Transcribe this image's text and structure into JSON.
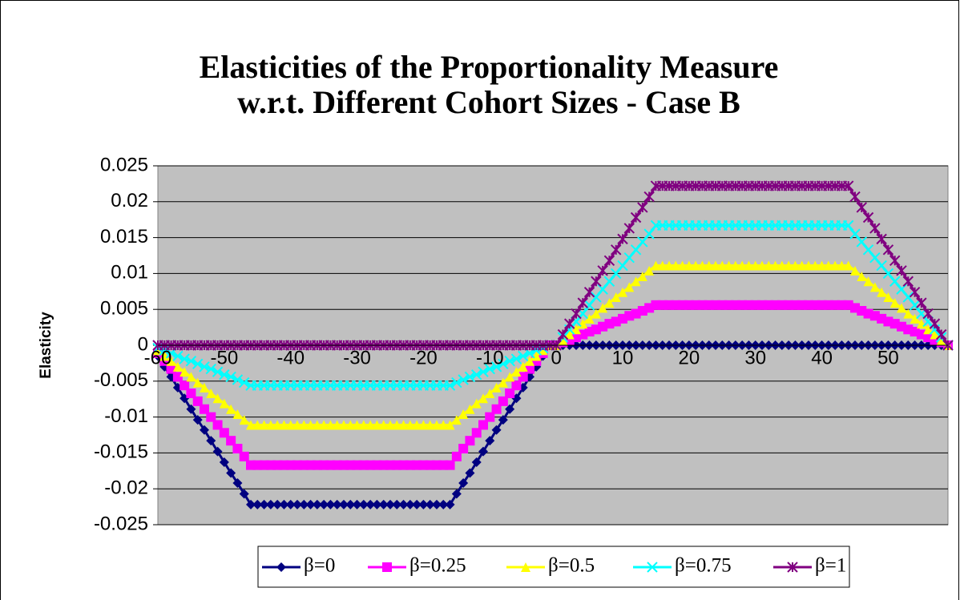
{
  "chart_data": {
    "type": "line",
    "title": [
      "Elasticities of the Proportionality Measure",
      "w.r.t. Different Cohort Sizes - Case B"
    ],
    "y_label": "Elasticity",
    "categories": [
      "-60",
      null,
      null,
      null,
      null,
      null,
      null,
      null,
      null,
      null,
      "-50",
      null,
      null,
      null,
      null,
      null,
      null,
      null,
      null,
      null,
      "-40",
      null,
      null,
      null,
      null,
      null,
      null,
      null,
      null,
      null,
      "-30",
      null,
      null,
      null,
      null,
      null,
      null,
      null,
      null,
      null,
      "-20",
      null,
      null,
      null,
      null,
      null,
      null,
      null,
      null,
      null,
      "-10",
      null,
      null,
      null,
      null,
      null,
      null,
      null,
      null,
      null,
      "0",
      null,
      null,
      null,
      null,
      null,
      null,
      null,
      null,
      null,
      "10",
      null,
      null,
      null,
      null,
      null,
      null,
      null,
      null,
      null,
      "20",
      null,
      null,
      null,
      null,
      null,
      null,
      null,
      null,
      null,
      "30",
      null,
      null,
      null,
      null,
      null,
      null,
      null,
      null,
      null,
      "40",
      null,
      null,
      null,
      null,
      null,
      null,
      null,
      null,
      null,
      "50",
      null,
      null,
      null,
      null,
      null,
      null,
      null,
      null,
      null
    ],
    "ylim": [
      -0.025,
      0.025
    ],
    "yticks": [
      -0.025,
      -0.02,
      -0.015,
      -0.01,
      -0.005,
      0,
      0.005,
      0.01,
      0.015,
      0.02,
      0.025
    ],
    "grid": true,
    "legend": "bottom",
    "series": [
      {
        "name": "β=0",
        "color": "#000080",
        "marker": "diamond",
        "values": [
          -0.0015,
          -0.003,
          -0.0044,
          -0.0059,
          -0.0074,
          -0.0089,
          -0.0104,
          -0.0118,
          -0.0133,
          -0.0148,
          -0.0163,
          -0.0178,
          -0.0192,
          -0.0207,
          -0.0222,
          -0.0222,
          -0.0222,
          -0.0222,
          -0.0222,
          -0.0222,
          -0.0222,
          -0.0222,
          -0.0222,
          -0.0222,
          -0.0222,
          -0.0222,
          -0.0222,
          -0.0222,
          -0.0222,
          -0.0222,
          -0.0222,
          -0.0222,
          -0.0222,
          -0.0222,
          -0.0222,
          -0.0222,
          -0.0222,
          -0.0222,
          -0.0222,
          -0.0222,
          -0.0222,
          -0.0222,
          -0.0222,
          -0.0222,
          -0.0222,
          -0.0207,
          -0.0192,
          -0.0178,
          -0.0163,
          -0.0148,
          -0.0133,
          -0.0118,
          -0.0104,
          -0.0089,
          -0.0074,
          -0.0059,
          -0.0044,
          -0.003,
          -0.0015,
          0,
          0,
          0,
          0,
          0,
          0,
          0,
          0,
          0,
          0,
          0,
          0,
          0,
          0,
          0,
          0,
          0,
          0,
          0,
          0,
          0,
          0,
          0,
          0,
          0,
          0,
          0,
          0,
          0,
          0,
          0,
          0,
          0,
          0,
          0,
          0,
          0,
          0,
          0,
          0,
          0,
          0,
          0,
          0,
          0,
          0,
          0,
          0,
          0,
          0,
          0,
          0,
          0,
          0,
          0,
          0,
          0,
          0,
          0,
          0,
          0
        ]
      },
      {
        "name": "β=0.25",
        "color": "#ff00ff",
        "marker": "square",
        "values": [
          -0.0011,
          -0.0022,
          -0.0033,
          -0.0044,
          -0.0056,
          -0.0067,
          -0.0078,
          -0.0089,
          -0.01,
          -0.0111,
          -0.0122,
          -0.0133,
          -0.0144,
          -0.0155,
          -0.0167,
          -0.0167,
          -0.0167,
          -0.0167,
          -0.0167,
          -0.0167,
          -0.0167,
          -0.0167,
          -0.0167,
          -0.0167,
          -0.0167,
          -0.0167,
          -0.0167,
          -0.0167,
          -0.0167,
          -0.0167,
          -0.0167,
          -0.0167,
          -0.0167,
          -0.0167,
          -0.0167,
          -0.0167,
          -0.0167,
          -0.0167,
          -0.0167,
          -0.0167,
          -0.0167,
          -0.0167,
          -0.0167,
          -0.0167,
          -0.0167,
          -0.0155,
          -0.0144,
          -0.0133,
          -0.0122,
          -0.0111,
          -0.01,
          -0.0089,
          -0.0078,
          -0.0067,
          -0.0056,
          -0.0044,
          -0.0033,
          -0.0022,
          -0.0011,
          0,
          0,
          0.0004,
          0.0007,
          0.0011,
          0.0015,
          0.0019,
          0.0022,
          0.0026,
          0.003,
          0.0033,
          0.0037,
          0.0041,
          0.0044,
          0.0048,
          0.0052,
          0.0056,
          0.0056,
          0.0056,
          0.0056,
          0.0056,
          0.0056,
          0.0056,
          0.0056,
          0.0056,
          0.0056,
          0.0056,
          0.0056,
          0.0056,
          0.0056,
          0.0056,
          0.0056,
          0.0056,
          0.0056,
          0.0056,
          0.0056,
          0.0056,
          0.0056,
          0.0056,
          0.0056,
          0.0056,
          0.0056,
          0.0056,
          0.0056,
          0.0056,
          0.0056,
          0.0052,
          0.0048,
          0.0044,
          0.0041,
          0.0037,
          0.0033,
          0.003,
          0.0026,
          0.0022,
          0.0019,
          0.0015,
          0.0011,
          0.0007,
          0.0004,
          0
        ]
      },
      {
        "name": "β=0.5",
        "color": "#ffff00",
        "marker": "triangle",
        "values": [
          -0.0007,
          -0.0015,
          -0.0022,
          -0.003,
          -0.0037,
          -0.0044,
          -0.0052,
          -0.0059,
          -0.0067,
          -0.0074,
          -0.0081,
          -0.0089,
          -0.0096,
          -0.0104,
          -0.0111,
          -0.0111,
          -0.0111,
          -0.0111,
          -0.0111,
          -0.0111,
          -0.0111,
          -0.0111,
          -0.0111,
          -0.0111,
          -0.0111,
          -0.0111,
          -0.0111,
          -0.0111,
          -0.0111,
          -0.0111,
          -0.0111,
          -0.0111,
          -0.0111,
          -0.0111,
          -0.0111,
          -0.0111,
          -0.0111,
          -0.0111,
          -0.0111,
          -0.0111,
          -0.0111,
          -0.0111,
          -0.0111,
          -0.0111,
          -0.0111,
          -0.0104,
          -0.0096,
          -0.0089,
          -0.0081,
          -0.0074,
          -0.0067,
          -0.0059,
          -0.0052,
          -0.0044,
          -0.0037,
          -0.003,
          -0.0022,
          -0.0015,
          -0.0007,
          0,
          0,
          0.0007,
          0.0015,
          0.0022,
          0.003,
          0.0037,
          0.0044,
          0.0052,
          0.0059,
          0.0067,
          0.0074,
          0.0081,
          0.0089,
          0.0096,
          0.0104,
          0.0111,
          0.0111,
          0.0111,
          0.0111,
          0.0111,
          0.0111,
          0.0111,
          0.0111,
          0.0111,
          0.0111,
          0.0111,
          0.0111,
          0.0111,
          0.0111,
          0.0111,
          0.0111,
          0.0111,
          0.0111,
          0.0111,
          0.0111,
          0.0111,
          0.0111,
          0.0111,
          0.0111,
          0.0111,
          0.0111,
          0.0111,
          0.0111,
          0.0111,
          0.0111,
          0.0104,
          0.0096,
          0.0089,
          0.0081,
          0.0074,
          0.0067,
          0.0059,
          0.0052,
          0.0044,
          0.0037,
          0.003,
          0.0022,
          0.0015,
          0.0007,
          0
        ]
      },
      {
        "name": "β=0.75",
        "color": "#00ffff",
        "marker": "x",
        "values": [
          -0.0004,
          -0.0007,
          -0.0011,
          -0.0015,
          -0.0019,
          -0.0022,
          -0.0026,
          -0.003,
          -0.0033,
          -0.0037,
          -0.0041,
          -0.0044,
          -0.0048,
          -0.0052,
          -0.0056,
          -0.0056,
          -0.0056,
          -0.0056,
          -0.0056,
          -0.0056,
          -0.0056,
          -0.0056,
          -0.0056,
          -0.0056,
          -0.0056,
          -0.0056,
          -0.0056,
          -0.0056,
          -0.0056,
          -0.0056,
          -0.0056,
          -0.0056,
          -0.0056,
          -0.0056,
          -0.0056,
          -0.0056,
          -0.0056,
          -0.0056,
          -0.0056,
          -0.0056,
          -0.0056,
          -0.0056,
          -0.0056,
          -0.0056,
          -0.0056,
          -0.0052,
          -0.0048,
          -0.0044,
          -0.0041,
          -0.0037,
          -0.0033,
          -0.003,
          -0.0026,
          -0.0022,
          -0.0019,
          -0.0015,
          -0.0011,
          -0.0007,
          -0.0004,
          0,
          0,
          0.0011,
          0.0022,
          0.0033,
          0.0044,
          0.0056,
          0.0067,
          0.0078,
          0.0089,
          0.01,
          0.0111,
          0.0122,
          0.0133,
          0.0144,
          0.0155,
          0.0167,
          0.0167,
          0.0167,
          0.0167,
          0.0167,
          0.0167,
          0.0167,
          0.0167,
          0.0167,
          0.0167,
          0.0167,
          0.0167,
          0.0167,
          0.0167,
          0.0167,
          0.0167,
          0.0167,
          0.0167,
          0.0167,
          0.0167,
          0.0167,
          0.0167,
          0.0167,
          0.0167,
          0.0167,
          0.0167,
          0.0167,
          0.0167,
          0.0167,
          0.0167,
          0.0155,
          0.0144,
          0.0133,
          0.0122,
          0.0111,
          0.01,
          0.0089,
          0.0078,
          0.0067,
          0.0056,
          0.0044,
          0.0033,
          0.0022,
          0.0011,
          0
        ]
      },
      {
        "name": "β=1",
        "color": "#800080",
        "marker": "star",
        "values": [
          0,
          0,
          0,
          0,
          0,
          0,
          0,
          0,
          0,
          0,
          0,
          0,
          0,
          0,
          0,
          0,
          0,
          0,
          0,
          0,
          0,
          0,
          0,
          0,
          0,
          0,
          0,
          0,
          0,
          0,
          0,
          0,
          0,
          0,
          0,
          0,
          0,
          0,
          0,
          0,
          0,
          0,
          0,
          0,
          0,
          0,
          0,
          0,
          0,
          0,
          0,
          0,
          0,
          0,
          0,
          0,
          0,
          0,
          0,
          0,
          0,
          0.0015,
          0.003,
          0.0044,
          0.0059,
          0.0074,
          0.0089,
          0.0104,
          0.0118,
          0.0133,
          0.0148,
          0.0163,
          0.0178,
          0.0192,
          0.0207,
          0.0222,
          0.0222,
          0.0222,
          0.0222,
          0.0222,
          0.0222,
          0.0222,
          0.0222,
          0.0222,
          0.0222,
          0.0222,
          0.0222,
          0.0222,
          0.0222,
          0.0222,
          0.0222,
          0.0222,
          0.0222,
          0.0222,
          0.0222,
          0.0222,
          0.0222,
          0.0222,
          0.0222,
          0.0222,
          0.0222,
          0.0222,
          0.0222,
          0.0222,
          0.0222,
          0.0207,
          0.0192,
          0.0178,
          0.0163,
          0.0148,
          0.0133,
          0.0118,
          0.0104,
          0.0089,
          0.0074,
          0.0059,
          0.0044,
          0.003,
          0.0015,
          0
        ]
      }
    ]
  }
}
